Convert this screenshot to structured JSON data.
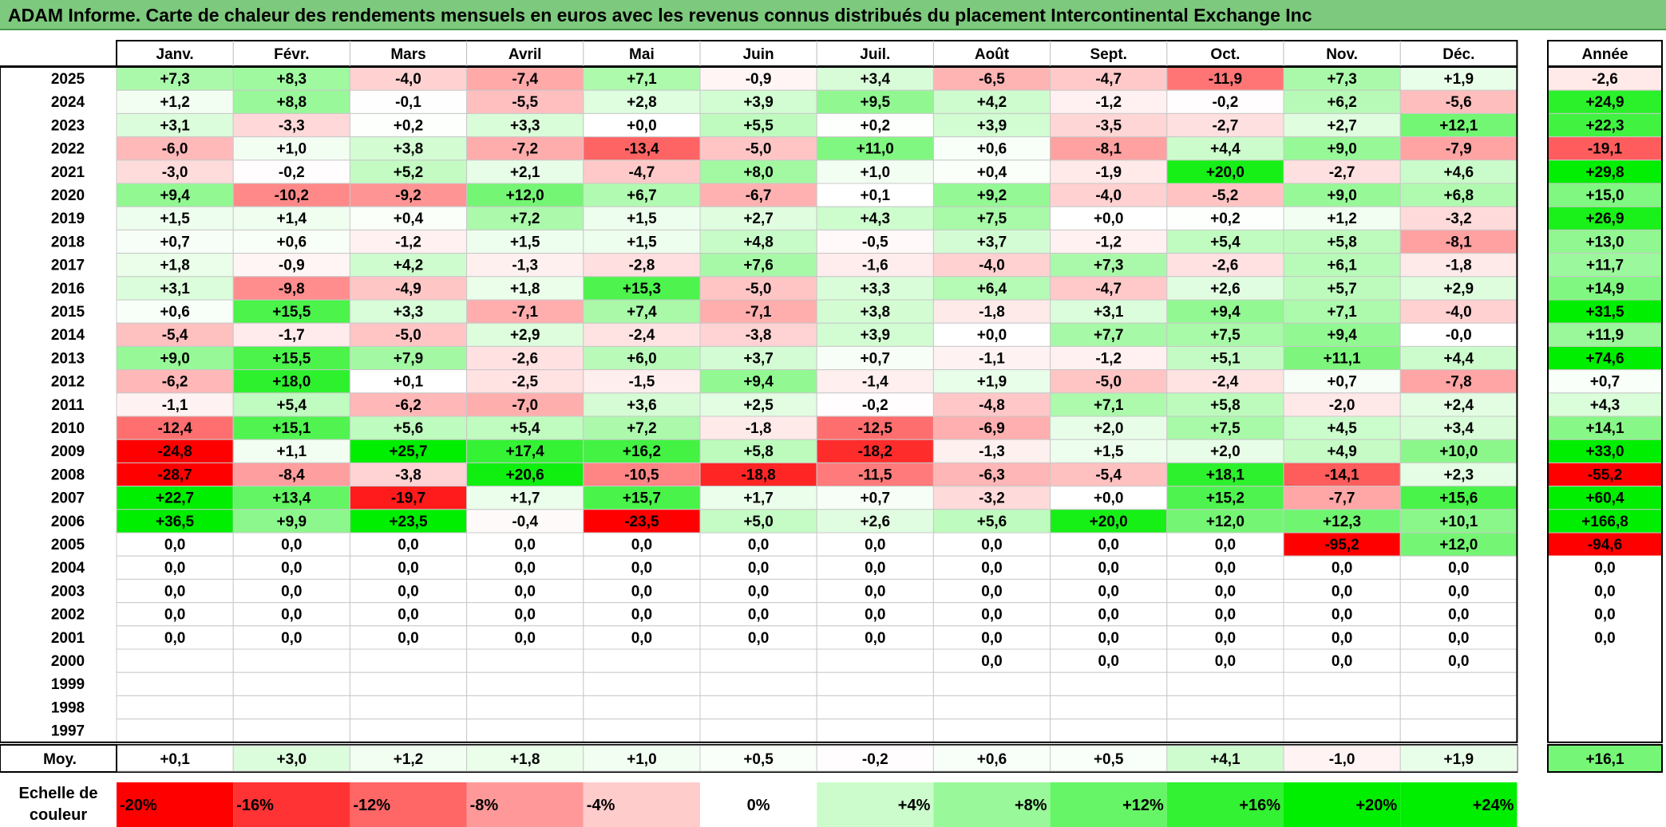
{
  "title": "ADAM Informe. Carte de chaleur des rendements mensuels en euros avec les revenus connus distribués du placement Intercontinental Exchange Inc",
  "chart_data": {
    "type": "heatmap",
    "months": [
      "Janv.",
      "Févr.",
      "Mars",
      "Avril",
      "Mai",
      "Juin",
      "Juil.",
      "Août",
      "Sept.",
      "Oct.",
      "Nov.",
      "Déc."
    ],
    "year_header": "Année",
    "rows": [
      {
        "year": "2025",
        "months": [
          "+7,3",
          "+8,3",
          "-4,0",
          "-7,4",
          "+7,1",
          "-0,9",
          "+3,4",
          "-6,5",
          "-4,7",
          "-11,9",
          "+7,3",
          "+1,9"
        ],
        "total": "-2,6"
      },
      {
        "year": "2024",
        "months": [
          "+1,2",
          "+8,8",
          "-0,1",
          "-5,5",
          "+2,8",
          "+3,9",
          "+9,5",
          "+4,2",
          "-1,2",
          "-0,2",
          "+6,2",
          "-5,6"
        ],
        "total": "+24,9"
      },
      {
        "year": "2023",
        "months": [
          "+3,1",
          "-3,3",
          "+0,2",
          "+3,3",
          "+0,0",
          "+5,5",
          "+0,2",
          "+3,9",
          "-3,5",
          "-2,7",
          "+2,7",
          "+12,1"
        ],
        "total": "+22,3"
      },
      {
        "year": "2022",
        "months": [
          "-6,0",
          "+1,0",
          "+3,8",
          "-7,2",
          "-13,4",
          "-5,0",
          "+11,0",
          "+0,6",
          "-8,1",
          "+4,4",
          "+9,0",
          "-7,9"
        ],
        "total": "-19,1"
      },
      {
        "year": "2021",
        "months": [
          "-3,0",
          "-0,2",
          "+5,2",
          "+2,1",
          "-4,7",
          "+8,0",
          "+1,0",
          "+0,4",
          "-1,9",
          "+20,0",
          "-2,7",
          "+4,6"
        ],
        "total": "+29,8"
      },
      {
        "year": "2020",
        "months": [
          "+9,4",
          "-10,2",
          "-9,2",
          "+12,0",
          "+6,7",
          "-6,7",
          "+0,1",
          "+9,2",
          "-4,0",
          "-5,2",
          "+9,0",
          "+6,8"
        ],
        "total": "+15,0"
      },
      {
        "year": "2019",
        "months": [
          "+1,5",
          "+1,4",
          "+0,4",
          "+7,2",
          "+1,5",
          "+2,7",
          "+4,3",
          "+7,5",
          "+0,0",
          "+0,2",
          "+1,2",
          "-3,2"
        ],
        "total": "+26,9"
      },
      {
        "year": "2018",
        "months": [
          "+0,7",
          "+0,6",
          "-1,2",
          "+1,5",
          "+1,5",
          "+4,8",
          "-0,5",
          "+3,7",
          "-1,2",
          "+5,4",
          "+5,8",
          "-8,1"
        ],
        "total": "+13,0"
      },
      {
        "year": "2017",
        "months": [
          "+1,8",
          "-0,9",
          "+4,2",
          "-1,3",
          "-2,8",
          "+7,6",
          "-1,6",
          "-4,0",
          "+7,3",
          "-2,6",
          "+6,1",
          "-1,8"
        ],
        "total": "+11,7"
      },
      {
        "year": "2016",
        "months": [
          "+3,1",
          "-9,8",
          "-4,9",
          "+1,8",
          "+15,3",
          "-5,0",
          "+3,3",
          "+6,4",
          "-4,7",
          "+2,6",
          "+5,7",
          "+2,9"
        ],
        "total": "+14,9"
      },
      {
        "year": "2015",
        "months": [
          "+0,6",
          "+15,5",
          "+3,3",
          "-7,1",
          "+7,4",
          "-7,1",
          "+3,8",
          "-1,8",
          "+3,1",
          "+9,4",
          "+7,1",
          "-4,0"
        ],
        "total": "+31,5"
      },
      {
        "year": "2014",
        "months": [
          "-5,4",
          "-1,7",
          "-5,0",
          "+2,9",
          "-2,4",
          "-3,8",
          "+3,9",
          "+0,0",
          "+7,7",
          "+7,5",
          "+9,4",
          "-0,0"
        ],
        "total": "+11,9"
      },
      {
        "year": "2013",
        "months": [
          "+9,0",
          "+15,5",
          "+7,9",
          "-2,6",
          "+6,0",
          "+3,7",
          "+0,7",
          "-1,1",
          "-1,2",
          "+5,1",
          "+11,1",
          "+4,4"
        ],
        "total": "+74,6"
      },
      {
        "year": "2012",
        "months": [
          "-6,2",
          "+18,0",
          "+0,1",
          "-2,5",
          "-1,5",
          "+9,4",
          "-1,4",
          "+1,9",
          "-5,0",
          "-2,4",
          "+0,7",
          "-7,8"
        ],
        "total": "+0,7"
      },
      {
        "year": "2011",
        "months": [
          "-1,1",
          "+5,4",
          "-6,2",
          "-7,0",
          "+3,6",
          "+2,5",
          "-0,2",
          "-4,8",
          "+7,1",
          "+5,8",
          "-2,0",
          "+2,4"
        ],
        "total": "+4,3"
      },
      {
        "year": "2010",
        "months": [
          "-12,4",
          "+15,1",
          "+5,6",
          "+5,4",
          "+7,2",
          "-1,8",
          "-12,5",
          "-6,9",
          "+2,0",
          "+7,5",
          "+4,5",
          "+3,4"
        ],
        "total": "+14,1"
      },
      {
        "year": "2009",
        "months": [
          "-24,8",
          "+1,1",
          "+25,7",
          "+17,4",
          "+16,2",
          "+5,8",
          "-18,2",
          "-1,3",
          "+1,5",
          "+2,0",
          "+4,9",
          "+10,0"
        ],
        "total": "+33,0"
      },
      {
        "year": "2008",
        "months": [
          "-28,7",
          "-8,4",
          "-3,8",
          "+20,6",
          "-10,5",
          "-18,8",
          "-11,5",
          "-6,3",
          "-5,4",
          "+18,1",
          "-14,1",
          "+2,3"
        ],
        "total": "-55,2"
      },
      {
        "year": "2007",
        "months": [
          "+22,7",
          "+13,4",
          "-19,7",
          "+1,7",
          "+15,7",
          "+1,7",
          "+0,7",
          "-3,2",
          "+0,0",
          "+15,2",
          "-7,7",
          "+15,6"
        ],
        "total": "+60,4"
      },
      {
        "year": "2006",
        "months": [
          "+36,5",
          "+9,9",
          "+23,5",
          "-0,4",
          "-23,5",
          "+5,0",
          "+2,6",
          "+5,6",
          "+20,0",
          "+12,0",
          "+12,3",
          "+10,1"
        ],
        "total": "+166,8"
      },
      {
        "year": "2005",
        "months": [
          "0,0",
          "0,0",
          "0,0",
          "0,0",
          "0,0",
          "0,0",
          "0,0",
          "0,0",
          "0,0",
          "0,0",
          "-95,2",
          "+12,0"
        ],
        "total": "-94,6"
      },
      {
        "year": "2004",
        "months": [
          "0,0",
          "0,0",
          "0,0",
          "0,0",
          "0,0",
          "0,0",
          "0,0",
          "0,0",
          "0,0",
          "0,0",
          "0,0",
          "0,0"
        ],
        "total": "0,0"
      },
      {
        "year": "2003",
        "months": [
          "0,0",
          "0,0",
          "0,0",
          "0,0",
          "0,0",
          "0,0",
          "0,0",
          "0,0",
          "0,0",
          "0,0",
          "0,0",
          "0,0"
        ],
        "total": "0,0"
      },
      {
        "year": "2002",
        "months": [
          "0,0",
          "0,0",
          "0,0",
          "0,0",
          "0,0",
          "0,0",
          "0,0",
          "0,0",
          "0,0",
          "0,0",
          "0,0",
          "0,0"
        ],
        "total": "0,0"
      },
      {
        "year": "2001",
        "months": [
          "0,0",
          "0,0",
          "0,0",
          "0,0",
          "0,0",
          "0,0",
          "0,0",
          "0,0",
          "0,0",
          "0,0",
          "0,0",
          "0,0"
        ],
        "total": "0,0"
      },
      {
        "year": "2000",
        "months": [
          "",
          "",
          "",
          "",
          "",
          "",
          "",
          "0,0",
          "0,0",
          "0,0",
          "0,0",
          "0,0"
        ],
        "total": ""
      },
      {
        "year": "1999",
        "months": [
          "",
          "",
          "",
          "",
          "",
          "",
          "",
          "",
          "",
          "",
          "",
          ""
        ],
        "total": ""
      },
      {
        "year": "1998",
        "months": [
          "",
          "",
          "",
          "",
          "",
          "",
          "",
          "",
          "",
          "",
          "",
          ""
        ],
        "total": ""
      },
      {
        "year": "1997",
        "months": [
          "",
          "",
          "",
          "",
          "",
          "",
          "",
          "",
          "",
          "",
          "",
          ""
        ],
        "total": ""
      }
    ],
    "average": {
      "label": "Moy.",
      "months": [
        "+0,1",
        "+3,0",
        "+1,2",
        "+1,8",
        "+1,0",
        "+0,5",
        "-0,2",
        "+0,6",
        "+0,5",
        "+4,1",
        "-1,0",
        "+1,9"
      ],
      "total": "+16,1"
    },
    "scale": {
      "label": [
        "Echelle de",
        "couleur"
      ],
      "stops": [
        {
          "label": "-20%",
          "value": -20
        },
        {
          "label": "-16%",
          "value": -16
        },
        {
          "label": "-12%",
          "value": -12
        },
        {
          "label": "-8%",
          "value": -8
        },
        {
          "label": "-4%",
          "value": -4
        },
        {
          "label": "0%",
          "value": 0
        },
        {
          "label": "+4%",
          "value": 4
        },
        {
          "label": "+8%",
          "value": 8
        },
        {
          "label": "+12%",
          "value": 12
        },
        {
          "label": "+16%",
          "value": 16
        },
        {
          "label": "+20%",
          "value": 20
        },
        {
          "label": "+24%",
          "value": 24
        }
      ]
    },
    "colors": {
      "negative_max": "#ff0000",
      "positive_max": "#00ee00",
      "neutral": "#ffffff",
      "title_bg": "#7dc97d"
    }
  }
}
